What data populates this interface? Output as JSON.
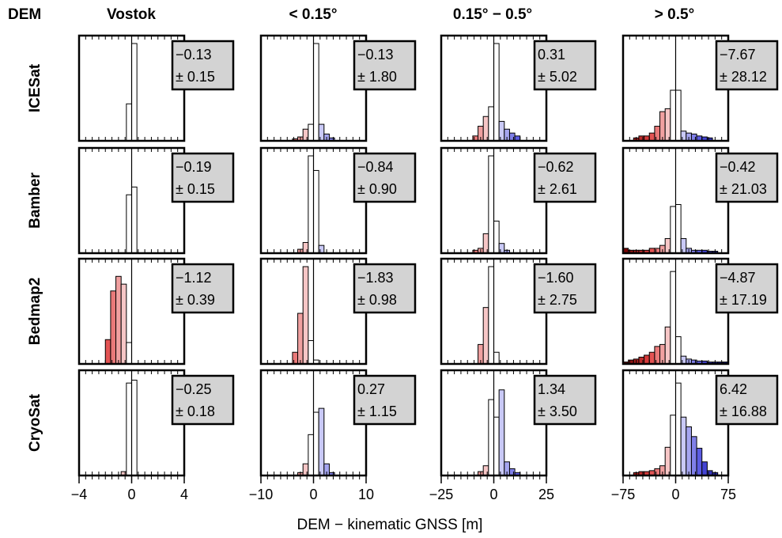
{
  "header": {
    "label": "DEM"
  },
  "chart_data": {
    "type": "bar",
    "xlabel": "DEM − kinematic GNSS [m]",
    "columns": [
      {
        "title": "Vostok",
        "xlim": [
          -4,
          4
        ],
        "ticks": [
          "−4",
          "0",
          "4"
        ],
        "tick_values": [
          -4,
          0,
          4
        ]
      },
      {
        "title": "< 0.15°",
        "xlim": [
          -10,
          10
        ],
        "ticks": [
          "−10",
          "0",
          "10"
        ],
        "tick_values": [
          -10,
          0,
          10
        ]
      },
      {
        "title": "0.15° − 0.5°",
        "xlim": [
          -25,
          25
        ],
        "ticks": [
          "−25",
          "0",
          "25"
        ],
        "tick_values": [
          -25,
          0,
          25
        ]
      },
      {
        "title": "> 0.5°",
        "xlim": [
          -75,
          75
        ],
        "ticks": [
          "−75",
          "0",
          "75"
        ],
        "tick_values": [
          -75,
          0,
          75
        ]
      }
    ],
    "rows": [
      "ICESat",
      "Bamber",
      "Bedmap2",
      "CryoSat"
    ],
    "stats": [
      [
        {
          "mean": "−0.13",
          "sd": "± 0.15"
        },
        {
          "mean": "−0.13",
          "sd": "± 1.80"
        },
        {
          "mean": "0.31",
          "sd": "± 5.02"
        },
        {
          "mean": "−7.67",
          "sd": "± 28.12"
        }
      ],
      [
        {
          "mean": "−0.19",
          "sd": "± 0.15"
        },
        {
          "mean": "−0.84",
          "sd": "± 0.90"
        },
        {
          "mean": "−0.62",
          "sd": "± 2.61"
        },
        {
          "mean": "−0.42",
          "sd": "± 21.03"
        }
      ],
      [
        {
          "mean": "−1.12",
          "sd": "± 0.39"
        },
        {
          "mean": "−1.83",
          "sd": "± 0.98"
        },
        {
          "mean": "−1.60",
          "sd": "± 2.75"
        },
        {
          "mean": "−4.87",
          "sd": "± 17.19"
        }
      ],
      [
        {
          "mean": "−0.25",
          "sd": "± 0.18"
        },
        {
          "mean": "0.27",
          "sd": "± 1.15"
        },
        {
          "mean": "1.34",
          "sd": "± 3.50"
        },
        {
          "mean": "6.42",
          "sd": "± 16.88"
        }
      ]
    ],
    "bin_width_fraction_of_range": 0.05,
    "histograms": [
      [
        {
          "bin_starts": [
            -0.4,
            0
          ],
          "heights": [
            0.38,
            1.0
          ]
        },
        {
          "bin_starts": [
            -4,
            -3,
            -2,
            -1,
            0,
            1,
            2,
            3
          ],
          "heights": [
            0.02,
            0.04,
            0.12,
            0.17,
            1.0,
            0.17,
            0.07,
            0.03
          ]
        },
        {
          "bin_starts": [
            -10,
            -7.5,
            -5,
            -2.5,
            0,
            2.5,
            5,
            7.5,
            10
          ],
          "heights": [
            0.05,
            0.15,
            0.25,
            0.35,
            1.0,
            0.2,
            0.12,
            0.08,
            0.05
          ]
        },
        {
          "bin_starts": [
            -60,
            -52.5,
            -45,
            -37.5,
            -30,
            -22.5,
            -15,
            -7.5,
            0,
            7.5,
            15,
            22.5,
            30,
            37.5,
            45
          ],
          "heights": [
            0.03,
            0.05,
            0.05,
            0.08,
            0.15,
            0.3,
            0.33,
            0.52,
            0.52,
            0.1,
            0.08,
            0.07,
            0.05,
            0.04,
            0.03
          ]
        }
      ],
      [
        {
          "bin_starts": [
            -0.4,
            0
          ],
          "heights": [
            0.6,
            0.68
          ]
        },
        {
          "bin_starts": [
            -3,
            -2,
            -1,
            0,
            1
          ],
          "heights": [
            0.04,
            0.11,
            1.0,
            0.85,
            0.08
          ]
        },
        {
          "bin_starts": [
            -10,
            -7.5,
            -5,
            -2.5,
            0,
            2.5,
            5
          ],
          "heights": [
            0.03,
            0.05,
            0.2,
            1.0,
            0.33,
            0.1,
            0.03
          ]
        },
        {
          "bin_starts": [
            -75,
            -67.5,
            -60,
            -52.5,
            -45,
            -37.5,
            -30,
            -22.5,
            -15,
            -7.5,
            0,
            7.5,
            15,
            22.5,
            30,
            37.5,
            45,
            52.5
          ],
          "heights": [
            0.05,
            0.03,
            0.03,
            0.03,
            0.03,
            0.05,
            0.05,
            0.08,
            0.15,
            0.48,
            0.5,
            0.15,
            0.05,
            0.03,
            0.03,
            0.03,
            0.02,
            0.02
          ]
        }
      ],
      [
        {
          "bin_starts": [
            -2,
            -1.6,
            -1.2,
            -0.8,
            -0.4
          ],
          "heights": [
            0.25,
            0.75,
            0.9,
            0.82,
            0.22
          ]
        },
        {
          "bin_starts": [
            -4,
            -3,
            -2,
            -1,
            0
          ],
          "heights": [
            0.12,
            0.52,
            1.0,
            0.24,
            0.04
          ]
        },
        {
          "bin_starts": [
            -7.5,
            -5,
            -2.5,
            0
          ],
          "heights": [
            0.2,
            0.58,
            1.0,
            0.12
          ]
        },
        {
          "bin_starts": [
            -75,
            -67.5,
            -60,
            -52.5,
            -45,
            -37.5,
            -30,
            -22.5,
            -15,
            -7.5,
            0,
            7.5,
            15,
            22.5,
            30,
            37.5,
            45,
            52.5,
            60,
            67.5
          ],
          "heights": [
            0.02,
            0.04,
            0.05,
            0.07,
            0.09,
            0.12,
            0.18,
            0.2,
            0.38,
            0.95,
            0.28,
            0.08,
            0.05,
            0.04,
            0.03,
            0.03,
            0.02,
            0.02,
            0.02,
            0.02
          ]
        }
      ],
      [
        {
          "bin_starts": [
            -0.8,
            -0.4,
            0
          ],
          "heights": [
            0.04,
            0.95,
            0.98
          ]
        },
        {
          "bin_starts": [
            -3,
            -2,
            -1,
            0,
            1,
            2,
            3
          ],
          "heights": [
            0.03,
            0.12,
            0.42,
            0.65,
            0.69,
            0.12,
            0.03
          ]
        },
        {
          "bin_starts": [
            -7.5,
            -5,
            -2.5,
            0,
            2.5,
            5,
            7.5,
            10
          ],
          "heights": [
            0.04,
            0.1,
            0.78,
            0.6,
            0.88,
            0.14,
            0.07,
            0.03
          ]
        },
        {
          "bin_starts": [
            -60,
            -52.5,
            -45,
            -37.5,
            -30,
            -22.5,
            -15,
            -7.5,
            0,
            7.5,
            15,
            22.5,
            30,
            37.5,
            45,
            52.5
          ],
          "heights": [
            0.03,
            0.04,
            0.04,
            0.05,
            0.07,
            0.1,
            0.29,
            0.62,
            0.95,
            0.6,
            0.5,
            0.4,
            0.28,
            0.14,
            0.05,
            0.03
          ]
        }
      ]
    ]
  }
}
